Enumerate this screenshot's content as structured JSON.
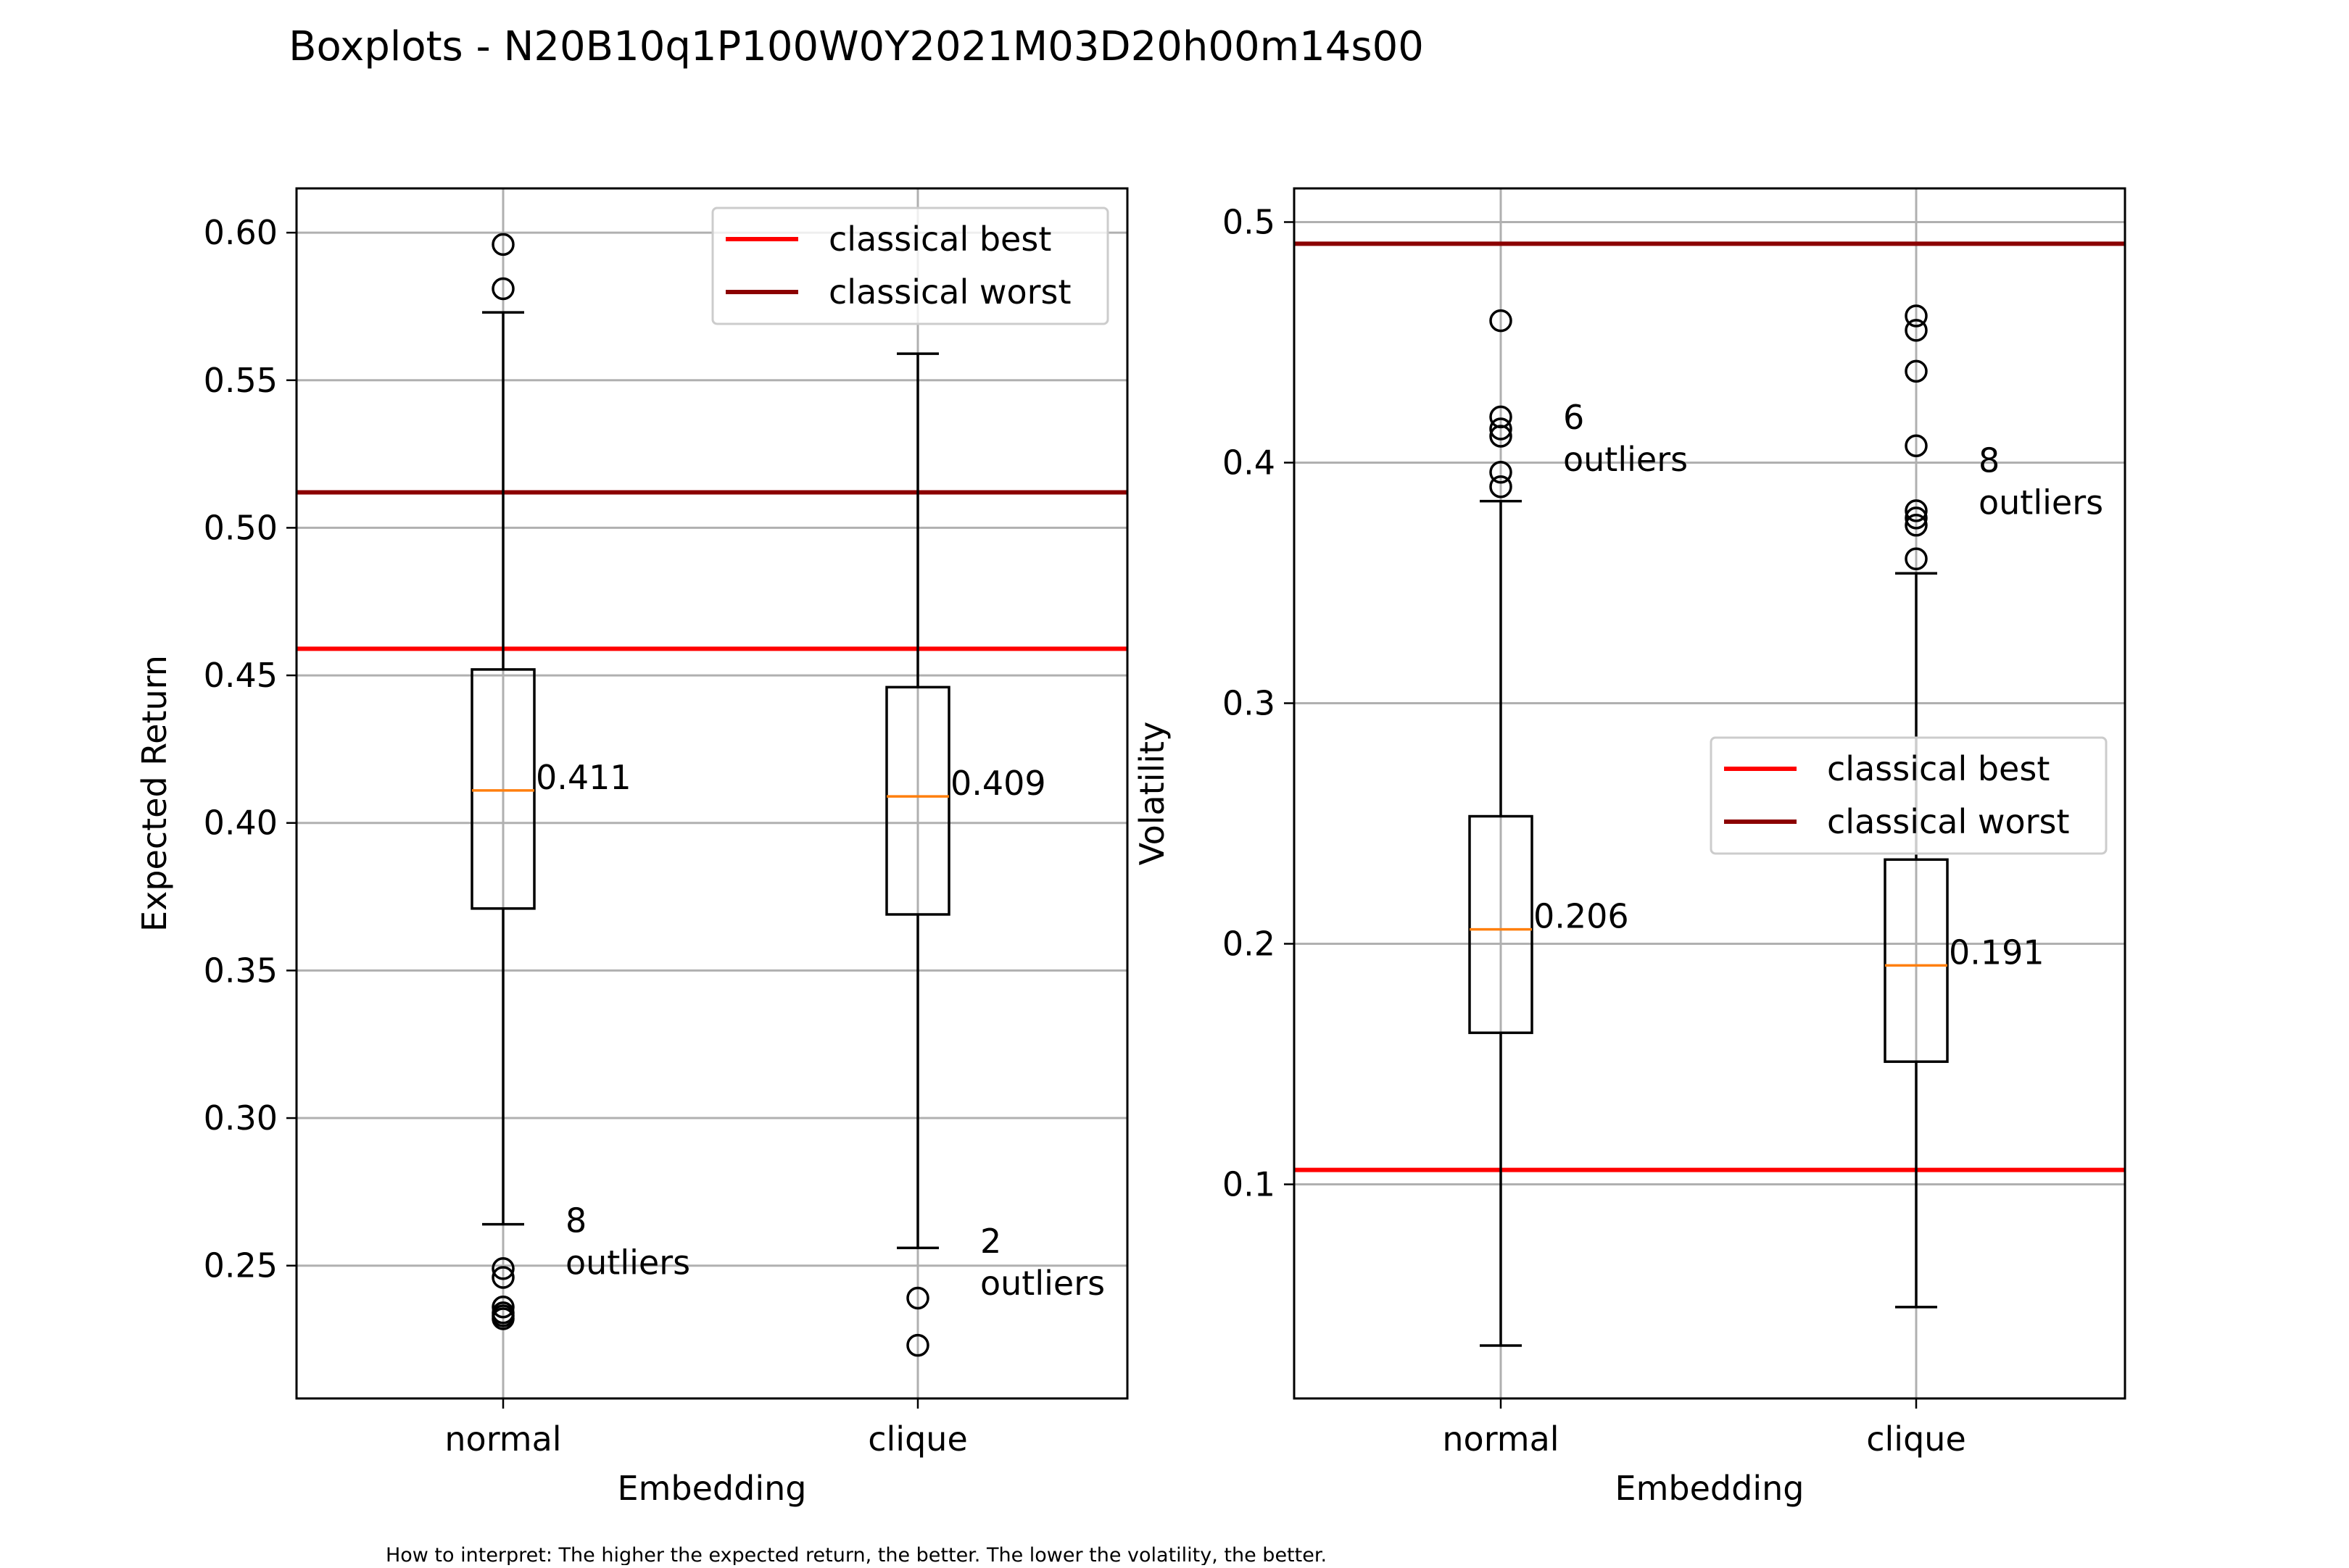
{
  "title": "Boxplots - N20B10q1P100W0Y2021M03D20h00m14s00",
  "footnote": "How to interpret: The higher the expected return, the better. The lower the volatility, the better.",
  "colors": {
    "classical_best": "#ff0000",
    "classical_worst": "#8b0000",
    "median": "#ff7f0e",
    "grid": "#b0b0b0",
    "box": "#000000"
  },
  "chart_data": [
    {
      "type": "boxplot",
      "xlabel": "Embedding",
      "ylabel": "Expected Return",
      "ylim": [
        0.205,
        0.615
      ],
      "yticks": [
        0.25,
        0.3,
        0.35,
        0.4,
        0.45,
        0.5,
        0.55,
        0.6
      ],
      "ytick_labels": [
        "0.25",
        "0.30",
        "0.35",
        "0.40",
        "0.45",
        "0.50",
        "0.55",
        "0.60"
      ],
      "grid": true,
      "legend_position": "upper right",
      "categories": [
        "normal",
        "clique"
      ],
      "boxes": [
        {
          "category": "normal",
          "whisker_low": 0.264,
          "q1": 0.371,
          "median": 0.411,
          "q3": 0.452,
          "whisker_high": 0.573,
          "outliers": [
            0.596,
            0.581,
            0.249,
            0.246,
            0.236,
            0.234,
            0.233,
            0.232
          ],
          "median_label": "0.411",
          "outlier_count_label": "8",
          "outlier_word": "outliers",
          "outlier_label_at": 0.254
        },
        {
          "category": "clique",
          "whisker_low": 0.256,
          "q1": 0.369,
          "median": 0.409,
          "q3": 0.446,
          "whisker_high": 0.559,
          "outliers": [
            0.239,
            0.223
          ],
          "median_label": "0.409",
          "outlier_count_label": "2",
          "outlier_word": "outliers",
          "outlier_label_at": 0.247
        }
      ],
      "reference_lines": [
        {
          "name": "classical best",
          "value": 0.459
        },
        {
          "name": "classical worst",
          "value": 0.512
        }
      ]
    },
    {
      "type": "boxplot",
      "xlabel": "Embedding",
      "ylabel": "Volatility",
      "ylim": [
        0.011,
        0.514
      ],
      "yticks": [
        0.1,
        0.2,
        0.3,
        0.4,
        0.5
      ],
      "ytick_labels": [
        "0.1",
        "0.2",
        "0.3",
        "0.4",
        "0.5"
      ],
      "grid": true,
      "legend_position": "center right",
      "categories": [
        "normal",
        "clique"
      ],
      "boxes": [
        {
          "category": "normal",
          "whisker_low": 0.033,
          "q1": 0.163,
          "median": 0.206,
          "q3": 0.253,
          "whisker_high": 0.384,
          "outliers": [
            0.459,
            0.419,
            0.414,
            0.411,
            0.396,
            0.39
          ],
          "median_label": "0.206",
          "outlier_count_label": "6",
          "outlier_word": "outliers",
          "outlier_label_at": 0.405
        },
        {
          "category": "clique",
          "whisker_low": 0.049,
          "q1": 0.151,
          "median": 0.191,
          "q3": 0.235,
          "whisker_high": 0.354,
          "outliers": [
            0.461,
            0.455,
            0.438,
            0.407,
            0.38,
            0.377,
            0.374,
            0.36
          ],
          "median_label": "0.191",
          "outlier_count_label": "8",
          "outlier_word": "outliers",
          "outlier_label_at": 0.387
        }
      ],
      "reference_lines": [
        {
          "name": "classical best",
          "value": 0.106
        },
        {
          "name": "classical worst",
          "value": 0.491
        }
      ]
    }
  ]
}
